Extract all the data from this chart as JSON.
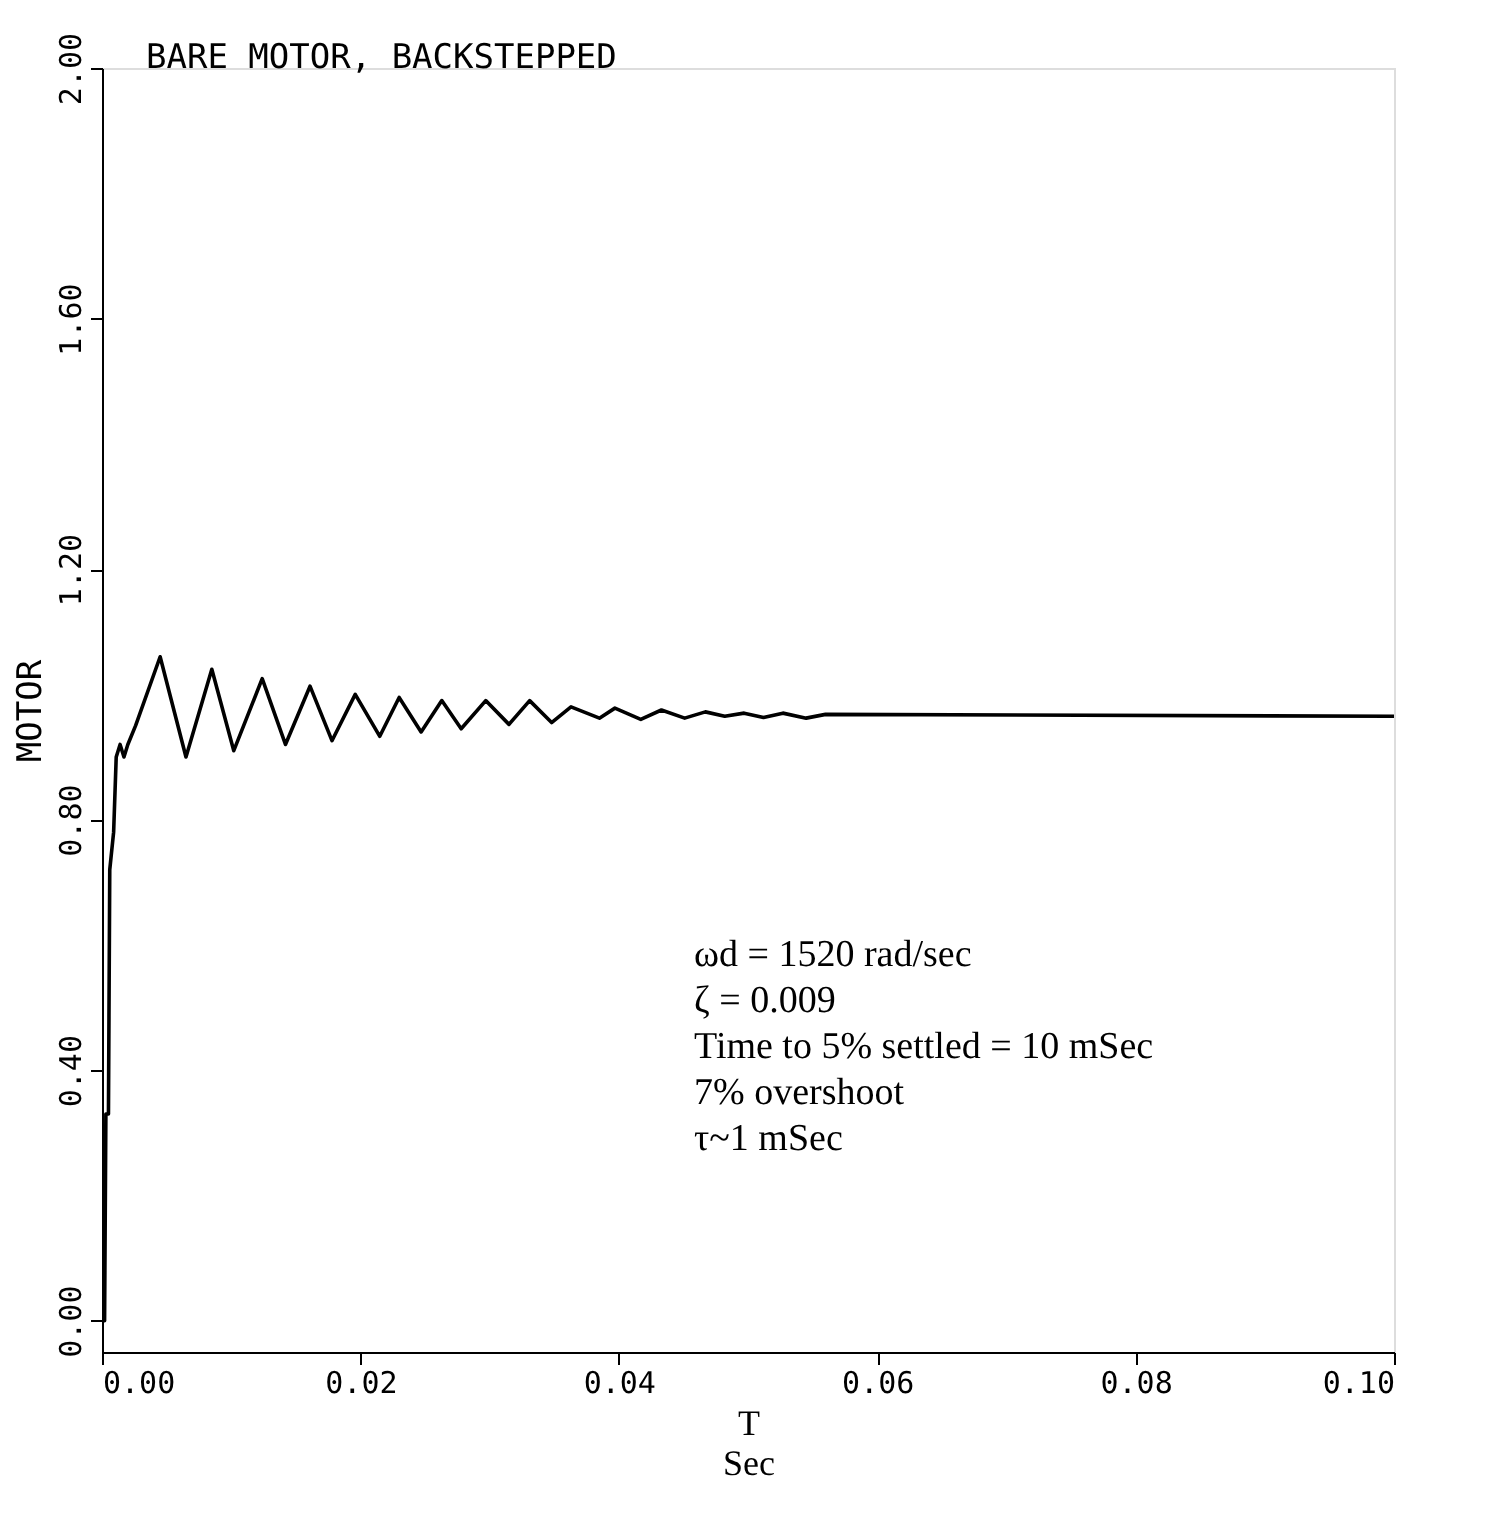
{
  "chart_data": {
    "type": "line",
    "title": "BARE MOTOR, BACKSTEPPED",
    "xlabel": "T\nSec",
    "ylabel": "MOTOR",
    "x": [
      0.0,
      0.0002,
      0.0003,
      0.0005,
      0.0006,
      0.0009,
      0.0011,
      0.0014,
      0.0017,
      0.002,
      0.0026,
      0.0045,
      0.0065,
      0.0085,
      0.0102,
      0.0124,
      0.0142,
      0.0161,
      0.0178,
      0.0196,
      0.0215,
      0.023,
      0.0247,
      0.0263,
      0.0278,
      0.0297,
      0.0315,
      0.0331,
      0.0348,
      0.0363,
      0.0385,
      0.0397,
      0.0417,
      0.0433,
      0.0451,
      0.0467,
      0.0482,
      0.0497,
      0.0512,
      0.0527,
      0.0545,
      0.056,
      0.1
    ],
    "series": [
      {
        "color": "#000000",
        "values": [
          0.0,
          0.0,
          0.33,
          0.33,
          0.72,
          0.78,
          0.9,
          0.92,
          0.9,
          0.92,
          0.95,
          1.06,
          0.9,
          1.04,
          0.91,
          1.025,
          0.92,
          1.013,
          0.926,
          1.0,
          0.933,
          0.995,
          0.94,
          0.99,
          0.945,
          0.99,
          0.952,
          0.99,
          0.955,
          0.98,
          0.962,
          0.978,
          0.96,
          0.975,
          0.962,
          0.972,
          0.965,
          0.97,
          0.963,
          0.97,
          0.962,
          0.968,
          0.965
        ]
      }
    ],
    "xlim": [
      0,
      0.1
    ],
    "xticks": [
      {
        "value": 0,
        "label": "0.00"
      },
      {
        "value": 0.02,
        "label": "0.02"
      },
      {
        "value": 0.04,
        "label": "0.04"
      },
      {
        "value": 0.06,
        "label": "0.06"
      },
      {
        "value": 0.08,
        "label": "0.08"
      },
      {
        "value": 0.1,
        "label": "0.10"
      }
    ],
    "ylim": [
      -0.05,
      2.0
    ],
    "yticks": [
      {
        "value": 0,
        "label": "0.00"
      },
      {
        "value": 0.4,
        "label": "0.40"
      },
      {
        "value": 0.8,
        "label": "0.80"
      },
      {
        "value": 1.2,
        "label": "1.20"
      },
      {
        "value": 1.6,
        "label": "1.60"
      },
      {
        "value": 2.0,
        "label": "2.00"
      }
    ],
    "grid": false,
    "marker": "none",
    "line_style": "solid",
    "annotations": [
      "ωd = 1520 rad/sec",
      "ζ = 0.009",
      "Time to 5% settled = 10 mSec",
      "7% overshoot",
      "τ~1 mSec"
    ]
  }
}
